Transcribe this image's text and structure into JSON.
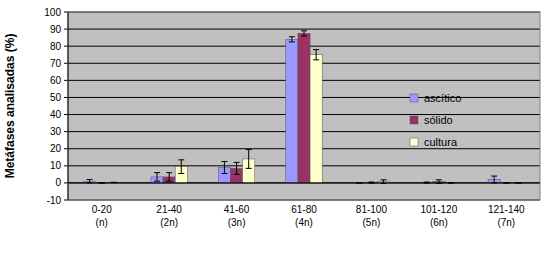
{
  "chart_data": {
    "type": "bar",
    "y_label": "Metáfases analisadas (%)",
    "categories": [
      "0-20\n(n)",
      "21-40\n(2n)",
      "41-60\n(3n)",
      "61-80\n(4n)",
      "81-100\n(5n)",
      "101-120\n(6n)",
      "121-140\n(7n)"
    ],
    "series": [
      {
        "name": "ascítico",
        "color": "#9999ff",
        "values": [
          1,
          3.5,
          9,
          84,
          0,
          0.2,
          2
        ],
        "errors": [
          1,
          2.5,
          3.5,
          1.5,
          0,
          0.3,
          2
        ]
      },
      {
        "name": "sólido",
        "color": "#993366",
        "values": [
          0,
          3.5,
          8.5,
          87.5,
          0.2,
          0.8,
          0
        ],
        "errors": [
          0,
          2.5,
          3.5,
          1.5,
          0.3,
          1,
          0
        ]
      },
      {
        "name": "cultura",
        "color": "#ffffcc",
        "values": [
          0.3,
          9.5,
          14,
          75,
          0.8,
          0,
          0
        ],
        "errors": [
          0,
          4,
          5.5,
          3,
          1,
          0,
          0
        ]
      }
    ],
    "ylim": [
      -10,
      100
    ],
    "yticks": [
      -10,
      0,
      10,
      20,
      30,
      40,
      50,
      60,
      70,
      80,
      90,
      100
    ],
    "grid": true,
    "legend": "right"
  }
}
